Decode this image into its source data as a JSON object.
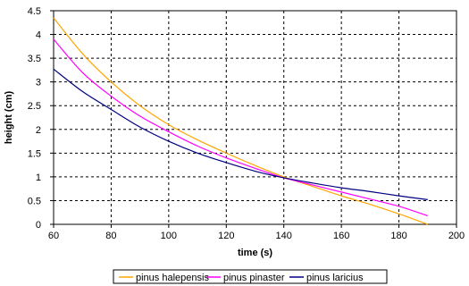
{
  "chart_data": {
    "type": "line",
    "xlabel": "time (s)",
    "ylabel": "height (cm)",
    "xlim": [
      60,
      200
    ],
    "ylim": [
      0,
      4.5
    ],
    "xticks": [
      "60",
      "80",
      "100",
      "120",
      "140",
      "160",
      "180",
      "200"
    ],
    "yticks": [
      "0",
      "0.5",
      "1",
      "1.5",
      "2",
      "2.5",
      "3",
      "3.5",
      "4",
      "4.5"
    ],
    "grid": true,
    "legend_position": "bottom",
    "series": [
      {
        "name": "pinus halepensis",
        "color": "#ffa500",
        "x": [
          60,
          70,
          80,
          90,
          100,
          110,
          120,
          130,
          140,
          150,
          160,
          170,
          180,
          190
        ],
        "y": [
          4.35,
          3.6,
          3.0,
          2.5,
          2.1,
          1.78,
          1.5,
          1.24,
          1.0,
          0.8,
          0.6,
          0.42,
          0.22,
          0.0
        ]
      },
      {
        "name": "pinus pinaster",
        "color": "#ff00ff",
        "x": [
          60,
          70,
          80,
          90,
          100,
          110,
          120,
          130,
          140,
          150,
          160,
          170,
          180,
          190
        ],
        "y": [
          3.9,
          3.2,
          2.7,
          2.28,
          1.95,
          1.65,
          1.4,
          1.18,
          0.98,
          0.83,
          0.68,
          0.53,
          0.38,
          0.18
        ]
      },
      {
        "name": "pinus laricius",
        "color": "#000080",
        "x": [
          60,
          70,
          80,
          90,
          100,
          110,
          120,
          130,
          140,
          150,
          160,
          170,
          180,
          190
        ],
        "y": [
          3.27,
          2.8,
          2.42,
          2.05,
          1.75,
          1.5,
          1.3,
          1.12,
          0.98,
          0.87,
          0.77,
          0.69,
          0.6,
          0.52
        ]
      }
    ]
  }
}
